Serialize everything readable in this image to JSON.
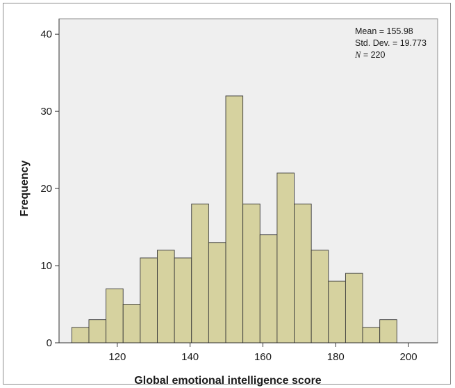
{
  "chart_data": {
    "type": "bar",
    "title": "",
    "xlabel": "Global emotional intelligence score",
    "ylabel": "Frequency",
    "bin_width": 4.7,
    "bin_start": 107.5,
    "values": [
      2,
      3,
      7,
      5,
      11,
      12,
      11,
      18,
      13,
      32,
      18,
      14,
      22,
      18,
      12,
      8,
      9,
      2,
      3
    ],
    "xlim": [
      104,
      208
    ],
    "ylim": [
      0,
      42
    ],
    "x_ticks": [
      "120",
      "140",
      "160",
      "180",
      "200"
    ],
    "y_ticks": [
      "0",
      "10",
      "20",
      "30",
      "40"
    ],
    "grid": false,
    "legend": "none",
    "stats": {
      "mean": "Mean = 155.98",
      "sd": "Std. Dev. = 19.773",
      "n_symbol": "N",
      "n_value": " = 220"
    },
    "colors": {
      "bar_fill": "#d6d29f",
      "bar_stroke": "#3a3a3a",
      "plot_bg": "#efefef"
    }
  }
}
